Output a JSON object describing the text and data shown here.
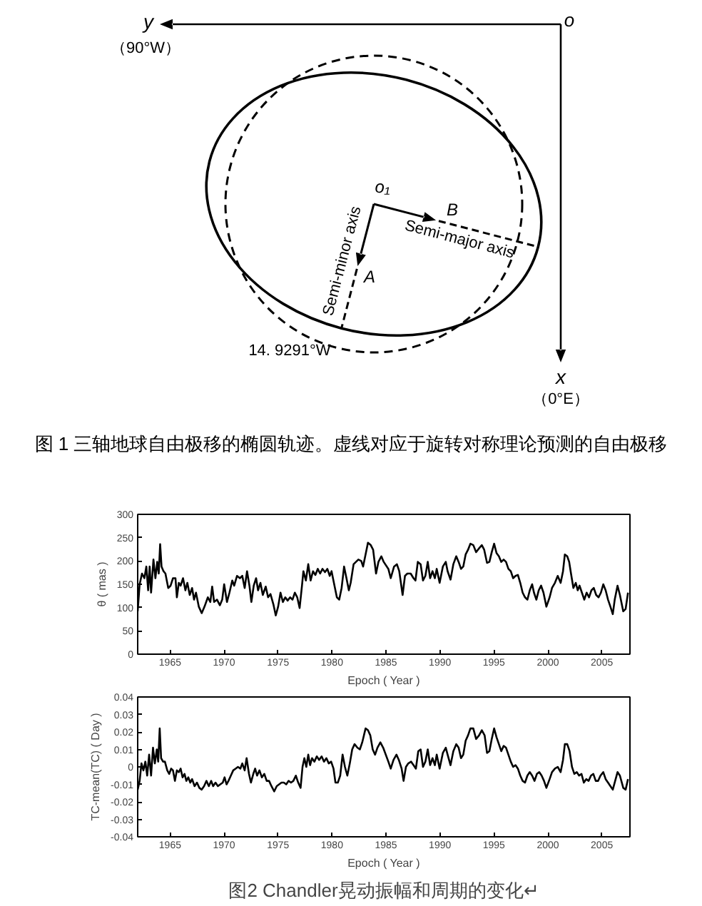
{
  "chart_data": [
    {
      "type": "other",
      "title": "图 1 三轴地球自由极移的椭圆轨迹。虚线对应于旋转对称理论预测的自由极移",
      "annotations": [
        "y",
        "（90°W）",
        "o",
        "x",
        "（0°E）",
        "o₁",
        "B",
        "A",
        "Semi-minor axis",
        "Semi-major axis",
        "14. 9291°W"
      ]
    },
    {
      "type": "line",
      "xlabel": "Epoch ( Year )",
      "ylabel": "θ ( mas )",
      "xlim": [
        1962,
        2007.6
      ],
      "xticks": [
        1965,
        1970,
        1975,
        1980,
        1985,
        1990,
        1995,
        2000,
        2005
      ],
      "ylim": [
        0,
        300
      ],
      "yticks": [
        0,
        50,
        100,
        150,
        200,
        250,
        300
      ],
      "x": [
        1962.0,
        1962.18,
        1962.4,
        1962.62,
        1962.8,
        1962.97,
        1963.11,
        1963.24,
        1963.46,
        1963.64,
        1963.81,
        1963.95,
        1964.08,
        1964.21,
        1964.39,
        1964.57,
        1964.83,
        1965.05,
        1965.27,
        1965.5,
        1965.63,
        1965.81,
        1965.98,
        1966.2,
        1966.42,
        1966.6,
        1966.82,
        1967.04,
        1967.22,
        1967.4,
        1967.66,
        1967.93,
        1968.19,
        1968.5,
        1968.73,
        1968.9,
        1969.08,
        1969.35,
        1969.61,
        1969.83,
        1970.01,
        1970.27,
        1970.5,
        1970.76,
        1970.94,
        1971.2,
        1971.47,
        1971.69,
        1971.91,
        1972.13,
        1972.35,
        1972.53,
        1972.75,
        1972.97,
        1973.15,
        1973.37,
        1973.59,
        1973.86,
        1974.08,
        1974.3,
        1974.57,
        1974.79,
        1975.01,
        1975.23,
        1975.45,
        1975.67,
        1975.89,
        1976.12,
        1976.34,
        1976.56,
        1976.78,
        1977.0,
        1977.22,
        1977.35,
        1977.58,
        1977.8,
        1978.02,
        1978.24,
        1978.46,
        1978.68,
        1978.9,
        1979.12,
        1979.35,
        1979.57,
        1979.79,
        1979.96,
        1980.23,
        1980.45,
        1980.67,
        1980.89,
        1981.12,
        1981.34,
        1981.56,
        1981.73,
        1982.0,
        1982.22,
        1982.44,
        1982.71,
        1982.88,
        1983.11,
        1983.33,
        1983.59,
        1983.81,
        1984.08,
        1984.3,
        1984.57,
        1984.79,
        1985.22,
        1985.44,
        1985.75,
        1986.01,
        1986.23,
        1986.54,
        1986.76,
        1986.98,
        1987.29,
        1987.55,
        1987.73,
        1987.95,
        1988.21,
        1988.43,
        1988.65,
        1988.87,
        1989.09,
        1989.31,
        1989.53,
        1989.7,
        1989.97,
        1990.27,
        1990.54,
        1990.71,
        1990.98,
        1991.24,
        1991.51,
        1991.73,
        1991.95,
        1992.16,
        1992.38,
        1992.6,
        1992.82,
        1993.09,
        1993.35,
        1993.62,
        1993.88,
        1994.1,
        1994.36,
        1994.58,
        1994.8,
        1995.02,
        1995.24,
        1995.46,
        1995.68,
        1995.9,
        1996.12,
        1996.34,
        1996.56,
        1996.78,
        1997.0,
        1997.22,
        1997.44,
        1997.66,
        1997.88,
        1998.1,
        1998.32,
        1998.54,
        1998.71,
        1998.93,
        1999.15,
        1999.37,
        1999.59,
        1999.86,
        2000.16,
        2000.38,
        2000.65,
        2000.91,
        2001.18,
        2001.4,
        2001.57,
        2001.79,
        2001.97,
        2002.14,
        2002.36,
        2002.58,
        2002.76,
        2002.93,
        2003.15,
        2003.37,
        2003.59,
        2003.81,
        2004.03,
        2004.25,
        2004.47,
        2004.69,
        2004.91,
        2005.13,
        2005.35,
        2005.57,
        2005.79,
        2006.01,
        2006.19,
        2006.45,
        2006.67,
        2006.98,
        2007.2,
        2007.42
      ],
      "series": [
        {
          "color": "#000000",
          "values": [
            92,
            150,
            173,
            163,
            188,
            137,
            188,
            132,
            203,
            163,
            198,
            173,
            236,
            188,
            178,
            173,
            142,
            147,
            163,
            163,
            122,
            153,
            147,
            163,
            137,
            153,
            127,
            142,
            117,
            132,
            102,
            88,
            102,
            122,
            112,
            145,
            112,
            117,
            105,
            117,
            150,
            112,
            132,
            158,
            147,
            168,
            163,
            168,
            142,
            178,
            147,
            112,
            147,
            163,
            137,
            153,
            127,
            145,
            122,
            129,
            107,
            83,
            102,
            132,
            112,
            122,
            115,
            122,
            117,
            132,
            122,
            99,
            147,
            178,
            158,
            193,
            158,
            178,
            170,
            183,
            173,
            183,
            176,
            183,
            168,
            178,
            147,
            122,
            117,
            142,
            188,
            163,
            137,
            153,
            193,
            198,
            203,
            200,
            188,
            214,
            239,
            234,
            224,
            173,
            198,
            210,
            198,
            183,
            163,
            188,
            193,
            178,
            127,
            168,
            173,
            173,
            163,
            158,
            198,
            193,
            158,
            168,
            198,
            163,
            178,
            163,
            183,
            153,
            188,
            198,
            178,
            160,
            193,
            210,
            198,
            183,
            188,
            214,
            224,
            237,
            234,
            219,
            227,
            234,
            224,
            196,
            198,
            219,
            237,
            217,
            210,
            198,
            203,
            198,
            183,
            178,
            163,
            168,
            170,
            153,
            132,
            122,
            117,
            137,
            150,
            132,
            117,
            137,
            147,
            132,
            102,
            122,
            142,
            153,
            168,
            153,
            178,
            214,
            210,
            198,
            173,
            142,
            153,
            137,
            147,
            132,
            117,
            132,
            122,
            137,
            142,
            127,
            122,
            132,
            150,
            137,
            117,
            102,
            86,
            117,
            147,
            127,
            92,
            97,
            132
          ]
        }
      ]
    },
    {
      "type": "line",
      "xlabel": "Epoch ( Year )",
      "ylabel": "TC-mean(TC) ( Day )",
      "xlim": [
        1962,
        2007.6
      ],
      "xticks": [
        1965,
        1970,
        1975,
        1980,
        1985,
        1990,
        1995,
        2000,
        2005
      ],
      "ylim": [
        -0.04,
        0.04
      ],
      "yticks": [
        -0.04,
        -0.03,
        -0.02,
        -0.01,
        0,
        0.01,
        0.02,
        0.03,
        0.04
      ],
      "annotations": [
        "图2 Chandler晃动振幅和周期的变化↵"
      ],
      "x": [
        1962.0,
        1962.18,
        1962.35,
        1962.53,
        1962.71,
        1962.88,
        1963.06,
        1963.24,
        1963.42,
        1963.59,
        1963.77,
        1963.9,
        1964.04,
        1964.17,
        1964.35,
        1964.52,
        1964.74,
        1964.92,
        1965.1,
        1965.27,
        1965.45,
        1965.63,
        1965.81,
        1965.98,
        1966.16,
        1966.34,
        1966.51,
        1966.69,
        1966.87,
        1967.04,
        1967.27,
        1967.49,
        1967.71,
        1967.93,
        1968.15,
        1968.37,
        1968.59,
        1968.81,
        1968.99,
        1969.21,
        1969.43,
        1969.65,
        1969.88,
        1970.05,
        1970.23,
        1970.41,
        1970.63,
        1970.85,
        1971.07,
        1971.29,
        1971.51,
        1971.69,
        1971.91,
        1972.09,
        1972.31,
        1972.49,
        1972.71,
        1972.88,
        1973.06,
        1973.28,
        1973.5,
        1973.73,
        1973.95,
        1974.17,
        1974.39,
        1974.65,
        1974.88,
        1975.1,
        1975.32,
        1975.54,
        1975.76,
        1975.98,
        1976.2,
        1976.42,
        1976.65,
        1976.87,
        1977.09,
        1977.27,
        1977.44,
        1977.62,
        1977.8,
        1977.97,
        1978.15,
        1978.37,
        1978.59,
        1978.81,
        1979.04,
        1979.26,
        1979.48,
        1979.7,
        1979.92,
        1980.14,
        1980.32,
        1980.54,
        1980.76,
        1980.98,
        1981.2,
        1981.42,
        1981.65,
        1981.87,
        1982.09,
        1982.35,
        1982.58,
        1982.8,
        1983.11,
        1983.33,
        1983.55,
        1983.77,
        1983.99,
        1984.21,
        1984.48,
        1984.74,
        1985.22,
        1985.44,
        1985.7,
        1985.97,
        1986.19,
        1986.45,
        1986.63,
        1986.85,
        1987.07,
        1987.33,
        1987.55,
        1987.77,
        1987.99,
        1988.21,
        1988.43,
        1988.65,
        1988.87,
        1989.09,
        1989.31,
        1989.53,
        1989.7,
        1989.97,
        1990.27,
        1990.54,
        1990.71,
        1990.98,
        1991.24,
        1991.51,
        1991.73,
        1991.95,
        1992.16,
        1992.38,
        1992.6,
        1992.82,
        1993.09,
        1993.35,
        1993.62,
        1993.88,
        1994.14,
        1994.36,
        1994.58,
        1994.8,
        1995.02,
        1995.24,
        1995.46,
        1995.68,
        1995.9,
        1996.12,
        1996.34,
        1996.56,
        1996.78,
        1997.0,
        1997.22,
        1997.44,
        1997.66,
        1997.88,
        1998.1,
        1998.32,
        1998.54,
        1998.76,
        1998.98,
        1999.2,
        1999.42,
        1999.64,
        1999.86,
        2000.16,
        2000.38,
        2000.65,
        2000.91,
        2001.18,
        2001.4,
        2001.57,
        2001.79,
        2002.01,
        2002.23,
        2002.45,
        2002.67,
        2002.89,
        2003.11,
        2003.33,
        2003.55,
        2003.77,
        2003.99,
        2004.21,
        2004.43,
        2004.65,
        2004.87,
        2005.13,
        2005.35,
        2005.57,
        2005.79,
        2006.01,
        2006.23,
        2006.45,
        2006.67,
        2006.98,
        2007.2,
        2007.42
      ],
      "series": [
        {
          "color": "#000000",
          "values": [
            -0.013,
            -0.008,
            0.002,
            -0.002,
            0.003,
            -0.005,
            0.007,
            -0.005,
            0.011,
            0.002,
            0.01,
            0.003,
            0.022,
            0.005,
            0.003,
            0.003,
            -0.002,
            -0.004,
            -0.001,
            -0.002,
            -0.008,
            -0.002,
            -0.003,
            -0.001,
            -0.006,
            -0.004,
            -0.008,
            -0.006,
            -0.009,
            -0.007,
            -0.011,
            -0.009,
            -0.012,
            -0.013,
            -0.011,
            -0.008,
            -0.011,
            -0.008,
            -0.011,
            -0.009,
            -0.011,
            -0.01,
            -0.009,
            -0.006,
            -0.01,
            -0.008,
            -0.005,
            -0.002,
            -0.001,
            0,
            -0.001,
            0.002,
            -0.002,
            0.005,
            -0.004,
            -0.009,
            -0.004,
            -0.001,
            -0.005,
            -0.002,
            -0.006,
            -0.004,
            -0.008,
            -0.008,
            -0.011,
            -0.014,
            -0.011,
            -0.01,
            -0.009,
            -0.009,
            -0.01,
            -0.008,
            -0.009,
            -0.008,
            -0.005,
            -0.009,
            -0.012,
            0,
            0.005,
            0,
            0.007,
            0.001,
            0.005,
            0.003,
            0.006,
            0.004,
            0.006,
            0.003,
            0.005,
            0.002,
            0.003,
            -0.001,
            -0.009,
            -0.009,
            -0.005,
            0.007,
            0,
            -0.005,
            0.002,
            0.01,
            0.013,
            0.011,
            0.01,
            0.014,
            0.022,
            0.021,
            0.018,
            0.01,
            0.007,
            0.011,
            0.014,
            0.011,
            0.003,
            -0.001,
            0.004,
            0.007,
            0.004,
            -0.001,
            -0.008,
            0,
            0.002,
            0.003,
            0.001,
            -0.001,
            0.009,
            0.01,
            0,
            0.003,
            0.01,
            0.001,
            0.005,
            0.001,
            0.007,
            -0.001,
            0.008,
            0.011,
            0.007,
            0.001,
            0.009,
            0.013,
            0.011,
            0.005,
            0.007,
            0.015,
            0.018,
            0.022,
            0.022,
            0.016,
            0.018,
            0.021,
            0.018,
            0.008,
            0.009,
            0.016,
            0.022,
            0.017,
            0.013,
            0.009,
            0.012,
            0.011,
            0.007,
            0.003,
            0,
            0.001,
            -0.001,
            -0.005,
            -0.008,
            -0.009,
            -0.005,
            -0.003,
            -0.005,
            -0.008,
            -0.004,
            -0.003,
            -0.005,
            -0.008,
            -0.012,
            -0.007,
            -0.003,
            -0.001,
            0,
            -0.003,
            0.004,
            0.013,
            0.013,
            0.009,
            0,
            -0.004,
            -0.003,
            -0.005,
            -0.004,
            -0.009,
            -0.007,
            -0.008,
            -0.005,
            -0.004,
            -0.008,
            -0.008,
            -0.005,
            -0.003,
            -0.007,
            -0.009,
            -0.011,
            -0.013,
            -0.008,
            -0.003,
            -0.005,
            -0.012,
            -0.013,
            -0.007
          ]
        }
      ]
    }
  ]
}
